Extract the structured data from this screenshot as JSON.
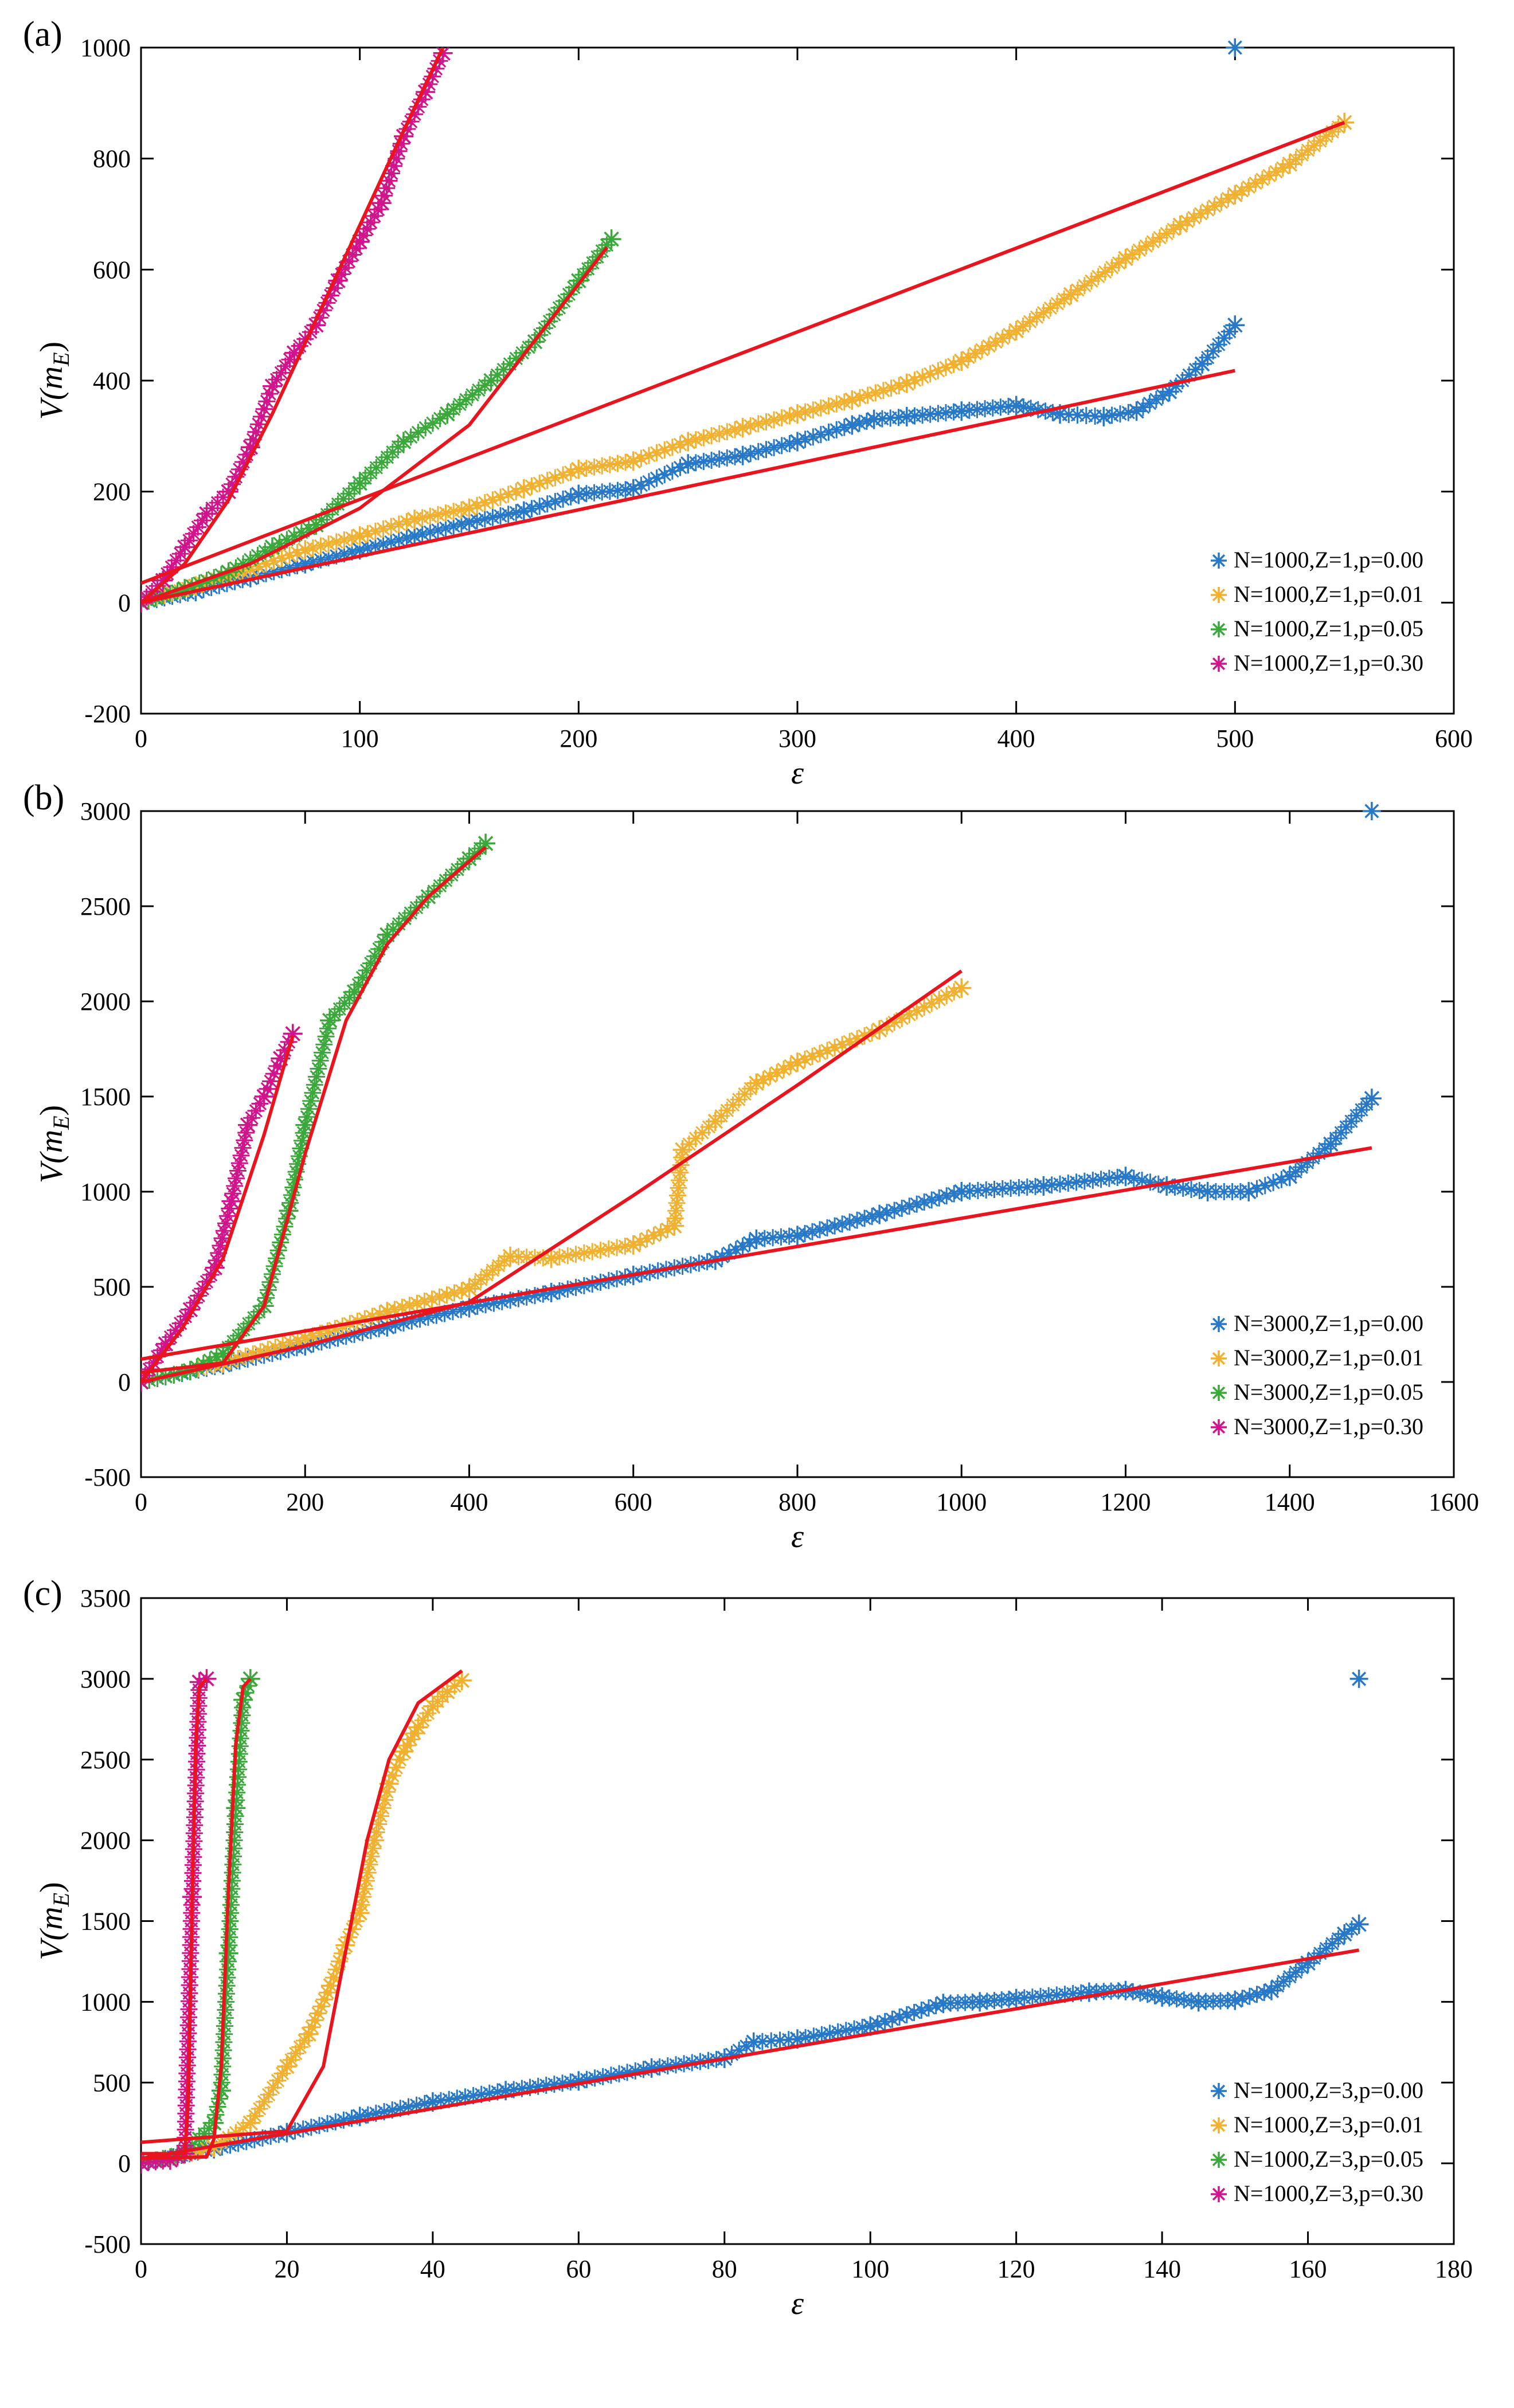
{
  "figure": {
    "description_label": "Three-panel scatter plot with red fit curves"
  },
  "colors": {
    "blue": "#2878c8",
    "orange": "#f0b030",
    "green": "#3aa83a",
    "magenta": "#d0148c",
    "fit": "#e8141e",
    "axis": "#000000"
  },
  "chart_data": [
    {
      "type": "scatter",
      "panel_label": "(a)",
      "xlabel": "ε",
      "ylabel_main": "V(m",
      "ylabel_sub": "E",
      "ylabel_close": ")",
      "xlim": [
        0,
        600
      ],
      "ylim": [
        -200,
        1000
      ],
      "xticks": [
        0,
        100,
        200,
        300,
        400,
        500,
        600
      ],
      "yticks": [
        -200,
        0,
        200,
        400,
        600,
        800,
        1000
      ],
      "legend_position": "bottom-right",
      "outlier": {
        "x": 500,
        "y": 1000,
        "series": 0
      },
      "series": [
        {
          "name": "N=1000,Z=1,p=0.00",
          "color": "blue",
          "x": [
            0,
            25,
            50,
            75,
            100,
            125,
            150,
            175,
            200,
            225,
            250,
            275,
            300,
            325,
            335,
            350,
            375,
            400,
            420,
            440,
            455,
            470,
            485,
            500
          ],
          "y": [
            0,
            20,
            45,
            70,
            95,
            120,
            145,
            165,
            195,
            205,
            250,
            265,
            290,
            320,
            330,
            335,
            345,
            355,
            340,
            335,
            345,
            380,
            430,
            500
          ],
          "fit": {
            "kind": "line",
            "x": [
              0,
              500
            ],
            "y": [
              0,
              418
            ]
          }
        },
        {
          "name": "N=1000,Z=1,p=0.01",
          "color": "orange",
          "x": [
            0,
            25,
            50,
            75,
            100,
            125,
            150,
            175,
            200,
            225,
            250,
            275,
            300,
            325,
            350,
            375,
            400,
            425,
            450,
            475,
            500,
            525,
            550
          ],
          "y": [
            0,
            30,
            60,
            95,
            120,
            150,
            170,
            205,
            240,
            255,
            290,
            315,
            340,
            365,
            395,
            435,
            490,
            555,
            620,
            680,
            735,
            790,
            865
          ],
          "fit": {
            "kind": "line",
            "x": [
              0,
              550
            ],
            "y": [
              35,
              865
            ]
          }
        },
        {
          "name": "N=1000,Z=1,p=0.05",
          "color": "green",
          "x": [
            0,
            20,
            40,
            60,
            80,
            100,
            120,
            140,
            160,
            180,
            200,
            215
          ],
          "y": [
            0,
            25,
            55,
            100,
            140,
            215,
            290,
            340,
            400,
            470,
            580,
            655
          ],
          "fit": {
            "kind": "line",
            "x": [
              0,
              50,
              100,
              150,
              213
            ],
            "y": [
              0,
              70,
              170,
              320,
              640
            ]
          }
        },
        {
          "name": "N=1000,Z=1,p=0.30",
          "color": "magenta",
          "x": [
            0,
            10,
            20,
            30,
            40,
            50,
            60,
            70,
            80,
            90,
            100,
            110,
            120,
            130,
            138
          ],
          "y": [
            0,
            40,
            100,
            160,
            200,
            280,
            390,
            450,
            500,
            580,
            650,
            720,
            840,
            920,
            990
          ],
          "fit": {
            "kind": "line",
            "x": [
              0,
              20,
              40,
              60,
              80,
              100,
              120,
              138
            ],
            "y": [
              0,
              70,
              185,
              340,
              510,
              680,
              850,
              1000
            ]
          }
        }
      ]
    },
    {
      "type": "scatter",
      "panel_label": "(b)",
      "xlabel": "ε",
      "ylabel_main": "V(m",
      "ylabel_sub": "E",
      "ylabel_close": ")",
      "xlim": [
        0,
        1600
      ],
      "ylim": [
        -500,
        3000
      ],
      "xticks": [
        0,
        200,
        400,
        600,
        800,
        1000,
        1200,
        1400,
        1600
      ],
      "yticks": [
        -500,
        0,
        500,
        1000,
        1500,
        2000,
        2500,
        3000
      ],
      "legend_position": "bottom-right",
      "outlier": {
        "x": 1500,
        "y": 3000,
        "series": 0
      },
      "series": [
        {
          "name": "N=3000,Z=1,p=0.00",
          "color": "blue",
          "x": [
            0,
            100,
            200,
            300,
            400,
            500,
            600,
            700,
            750,
            800,
            900,
            1000,
            1100,
            1200,
            1250,
            1300,
            1350,
            1400,
            1450,
            1500
          ],
          "y": [
            0,
            90,
            190,
            290,
            390,
            470,
            560,
            640,
            750,
            770,
            880,
            1000,
            1030,
            1080,
            1030,
            1000,
            1000,
            1080,
            1250,
            1490
          ],
          "fit": {
            "kind": "line",
            "x": [
              0,
              1500
            ],
            "y": [
              120,
              1230
            ]
          }
        },
        {
          "name": "N=3000,Z=1,p=0.01",
          "color": "orange",
          "x": [
            0,
            100,
            200,
            300,
            400,
            450,
            500,
            600,
            650,
            660,
            700,
            750,
            800,
            900,
            1000
          ],
          "y": [
            0,
            100,
            230,
            370,
            490,
            660,
            650,
            720,
            820,
            1220,
            1370,
            1570,
            1680,
            1850,
            2070
          ],
          "fit": {
            "kind": "line",
            "x": [
              0,
              200,
              400,
              600,
              800,
              1000
            ],
            "y": [
              0,
              190,
              420,
              980,
              1560,
              2160
            ]
          }
        },
        {
          "name": "N=3000,Z=1,p=0.05",
          "color": "green",
          "x": [
            0,
            60,
            100,
            150,
            180,
            200,
            230,
            260,
            300,
            350,
            400,
            420
          ],
          "y": [
            0,
            60,
            150,
            400,
            900,
            1350,
            1900,
            2050,
            2350,
            2550,
            2750,
            2830
          ],
          "fit": {
            "kind": "line",
            "x": [
              0,
              100,
              150,
              200,
              250,
              300,
              350,
              420
            ],
            "y": [
              50,
              100,
              400,
              1200,
              1900,
              2300,
              2550,
              2810
            ]
          }
        },
        {
          "name": "N=3000,Z=1,p=0.30",
          "color": "magenta",
          "x": [
            0,
            30,
            60,
            90,
            110,
            130,
            150,
            170,
            185
          ],
          "y": [
            0,
            200,
            380,
            600,
            950,
            1350,
            1500,
            1700,
            1830
          ],
          "fit": {
            "kind": "line",
            "x": [
              0,
              50,
              100,
              150,
              185
            ],
            "y": [
              0,
              280,
              650,
              1300,
              1820
            ]
          }
        }
      ]
    },
    {
      "type": "scatter",
      "panel_label": "(c)",
      "xlabel": "ε",
      "ylabel_main": "V(m",
      "ylabel_sub": "E",
      "ylabel_close": ")",
      "xlim": [
        0,
        180
      ],
      "ylim": [
        -500,
        3500
      ],
      "xticks": [
        0,
        20,
        40,
        60,
        80,
        100,
        120,
        140,
        160,
        180
      ],
      "yticks": [
        -500,
        0,
        500,
        1000,
        1500,
        2000,
        2500,
        3000,
        3500
      ],
      "legend_position": "bottom-right",
      "outlier": {
        "x": 167,
        "y": 3000,
        "series": 0
      },
      "series": [
        {
          "name": "N=1000,Z=3,p=0.00",
          "color": "blue",
          "x": [
            0,
            10,
            20,
            30,
            40,
            50,
            60,
            70,
            80,
            84,
            90,
            100,
            110,
            115,
            120,
            130,
            135,
            140,
            145,
            150,
            155,
            160,
            165,
            167
          ],
          "y": [
            0,
            90,
            190,
            290,
            380,
            450,
            510,
            590,
            650,
            750,
            770,
            850,
            990,
            1000,
            1020,
            1060,
            1070,
            1030,
            1000,
            1010,
            1070,
            1240,
            1420,
            1480
          ],
          "fit": {
            "kind": "line",
            "x": [
              0,
              167
            ],
            "y": [
              30,
              1320
            ]
          }
        },
        {
          "name": "N=1000,Z=3,p=0.01",
          "color": "orange",
          "x": [
            0,
            5,
            10,
            15,
            20,
            23,
            26,
            28,
            30,
            32,
            34,
            36,
            38,
            40,
            42,
            44
          ],
          "y": [
            0,
            40,
            100,
            250,
            600,
            800,
            1100,
            1350,
            1550,
            2000,
            2350,
            2550,
            2700,
            2830,
            2920,
            2990
          ],
          "fit": {
            "kind": "line",
            "x": [
              0,
              20,
              25,
              28,
              31,
              34,
              38,
              44
            ],
            "y": [
              130,
              200,
              600,
              1300,
              2000,
              2500,
              2850,
              3050
            ]
          }
        },
        {
          "name": "N=1000,Z=3,p=0.05",
          "color": "green",
          "x": [
            0,
            5,
            8,
            10,
            11,
            12,
            13,
            14,
            15
          ],
          "y": [
            0,
            50,
            150,
            250,
            450,
            1300,
            2200,
            2870,
            3000
          ],
          "fit": {
            "kind": "line",
            "x": [
              0,
              9,
              10,
              11,
              12,
              13,
              14,
              15
            ],
            "y": [
              30,
              40,
              150,
              600,
              1700,
              2600,
              2950,
              3000
            ]
          }
        },
        {
          "name": "N=1000,Z=3,p=0.30",
          "color": "magenta",
          "x": [
            0,
            4,
            6,
            7,
            8,
            9
          ],
          "y": [
            0,
            20,
            60,
            1650,
            2980,
            3000
          ],
          "fit": {
            "kind": "line",
            "x": [
              0,
              6,
              6.5,
              7,
              7.5,
              8,
              9
            ],
            "y": [
              60,
              60,
              400,
              1600,
              2600,
              2950,
              3000
            ]
          }
        }
      ]
    }
  ]
}
